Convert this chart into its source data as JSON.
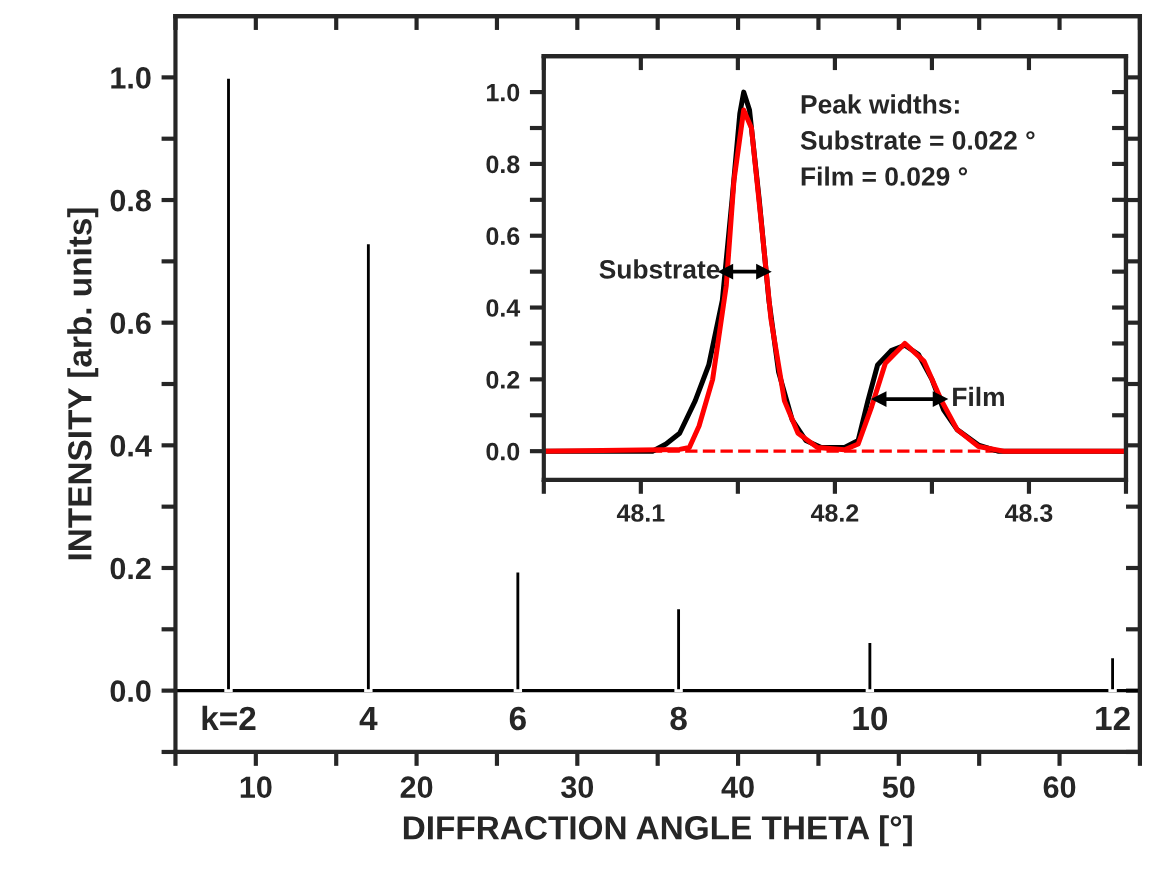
{
  "chart_data": [
    {
      "type": "bar",
      "xlabel": "DIFFRACTION ANGLE THETA [°]",
      "ylabel": "INTENSITY [arb. units]",
      "x": [
        8.3,
        17.0,
        26.3,
        36.3,
        48.2,
        63.3
      ],
      "series": [
        {
          "color": "#000000",
          "values": [
            1.0,
            0.73,
            0.195,
            0.135,
            0.08,
            0.055
          ]
        }
      ],
      "xlim": [
        5,
        65
      ],
      "xticks": [
        {
          "value": 5,
          "label": null
        },
        10,
        {
          "value": 15,
          "label": null
        },
        20,
        {
          "value": 25,
          "label": null
        },
        30,
        {
          "value": 35,
          "label": null
        },
        40,
        {
          "value": 45,
          "label": null
        },
        50,
        {
          "value": 55,
          "label": null
        },
        60,
        {
          "value": 65,
          "label": null
        }
      ],
      "ylim": [
        -0.1,
        1.1
      ],
      "yticks": [
        {
          "value": -0.1,
          "label": null
        },
        {
          "value": 0,
          "label": "0.0"
        },
        {
          "value": 0.1,
          "label": null
        },
        0.2,
        {
          "value": 0.3,
          "label": null
        },
        0.4,
        {
          "value": 0.5,
          "label": null
        },
        0.6,
        {
          "value": 0.7,
          "label": null
        },
        0.8,
        {
          "value": 0.9,
          "label": null
        },
        {
          "value": 1.0,
          "label": "1.0"
        }
      ],
      "ref_lines": [
        {
          "axis": "y",
          "value": 0,
          "color": "#000000",
          "line_style": "solid"
        }
      ],
      "annotations": [
        "k=2",
        "4",
        "6",
        "8",
        "10",
        "12"
      ],
      "grid": false
    },
    {
      "type": "line",
      "series": [
        {
          "color": "#000000",
          "x": [
            48.05,
            48.106,
            48.113,
            48.12,
            48.128,
            48.135,
            48.142,
            48.147,
            48.151,
            48.153,
            48.156,
            48.161,
            48.166,
            48.171,
            48.178,
            48.185,
            48.193,
            48.205,
            48.212,
            48.217,
            48.222,
            48.229,
            48.236,
            48.243,
            48.25,
            48.256,
            48.263,
            48.274,
            48.284,
            48.35
          ],
          "values": [
            0.0,
            0.0,
            0.02,
            0.05,
            0.14,
            0.24,
            0.42,
            0.7,
            0.94,
            1.0,
            0.95,
            0.7,
            0.42,
            0.22,
            0.087,
            0.03,
            0.01,
            0.01,
            0.03,
            0.14,
            0.24,
            0.28,
            0.295,
            0.27,
            0.2,
            0.115,
            0.06,
            0.017,
            0.0,
            0.0
          ]
        },
        {
          "color": "#ff0000",
          "x": [
            48.05,
            48.12,
            48.125,
            48.13,
            48.137,
            48.144,
            48.148,
            48.153,
            48.157,
            48.162,
            48.167,
            48.174,
            48.181,
            48.191,
            48.205,
            48.212,
            48.219,
            48.226,
            48.236,
            48.246,
            48.255,
            48.263,
            48.274,
            48.287,
            48.35
          ],
          "values": [
            0.0,
            0.005,
            0.01,
            0.07,
            0.2,
            0.46,
            0.755,
            0.95,
            0.9,
            0.64,
            0.37,
            0.14,
            0.05,
            0.01,
            0.004,
            0.02,
            0.125,
            0.245,
            0.3,
            0.25,
            0.14,
            0.06,
            0.013,
            0.0,
            0.0
          ]
        },
        {
          "color": "#000000",
          "x": [
            48.144,
            48.163
          ],
          "values": [
            0.5,
            0.5
          ],
          "marker": "triangle"
        },
        {
          "color": "#000000",
          "x": [
            48.223,
            48.254
          ],
          "values": [
            0.145,
            0.145
          ],
          "marker": "triangle"
        }
      ],
      "xlim": [
        48.05,
        48.35
      ],
      "xticks": [
        {
          "value": 48.05,
          "label": null
        },
        48.1,
        {
          "value": 48.15,
          "label": null
        },
        48.2,
        {
          "value": 48.25,
          "label": null
        },
        48.3,
        {
          "value": 48.35,
          "label": null
        }
      ],
      "ylim": [
        -0.08,
        1.1
      ],
      "yticks": [
        {
          "value": 0,
          "label": "0.0"
        },
        {
          "value": 0.1,
          "label": null
        },
        0.2,
        {
          "value": 0.3,
          "label": null
        },
        0.4,
        {
          "value": 0.5,
          "label": null
        },
        0.6,
        {
          "value": 0.7,
          "label": null
        },
        0.8,
        {
          "value": 0.9,
          "label": null
        },
        {
          "value": 1.0,
          "label": "1.0"
        }
      ],
      "ref_lines": [
        {
          "axis": "y",
          "value": 0,
          "color": "#ff0000",
          "line_style": "dashed"
        }
      ],
      "annotations": [
        "Peak widths:\nSubstrate = 0.022 °\nFilm = 0.029 °",
        {
          "text": "Substrate",
          "x": 48.141,
          "y": 0.5
        },
        {
          "text": "Film",
          "x": 48.26,
          "y": 0.145
        }
      ],
      "grid": false
    }
  ]
}
